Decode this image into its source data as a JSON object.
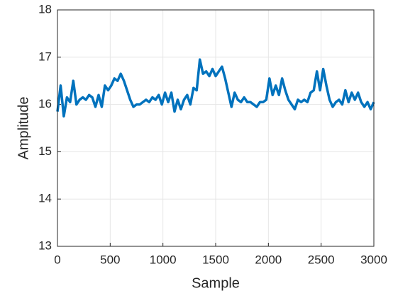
{
  "chart_data": {
    "type": "line",
    "xlabel": "Sample",
    "ylabel": "Amplitude",
    "x": [
      0,
      30,
      60,
      90,
      120,
      150,
      180,
      210,
      240,
      270,
      300,
      330,
      360,
      390,
      420,
      450,
      480,
      510,
      540,
      570,
      600,
      630,
      660,
      690,
      720,
      750,
      780,
      810,
      840,
      870,
      900,
      930,
      960,
      990,
      1020,
      1050,
      1080,
      1110,
      1140,
      1170,
      1200,
      1230,
      1260,
      1290,
      1320,
      1350,
      1380,
      1410,
      1440,
      1470,
      1500,
      1530,
      1560,
      1590,
      1620,
      1650,
      1680,
      1710,
      1740,
      1770,
      1800,
      1830,
      1860,
      1890,
      1920,
      1950,
      1980,
      2010,
      2040,
      2070,
      2100,
      2130,
      2160,
      2190,
      2220,
      2250,
      2280,
      2310,
      2340,
      2370,
      2400,
      2430,
      2460,
      2490,
      2520,
      2550,
      2580,
      2610,
      2640,
      2670,
      2700,
      2730,
      2760,
      2790,
      2820,
      2850,
      2880,
      2910,
      2940,
      2970,
      3000
    ],
    "values": [
      15.85,
      16.4,
      15.75,
      16.15,
      16.05,
      16.5,
      16.0,
      16.1,
      16.15,
      16.1,
      16.2,
      16.15,
      15.95,
      16.2,
      15.95,
      16.4,
      16.3,
      16.4,
      16.55,
      16.5,
      16.65,
      16.5,
      16.3,
      16.1,
      15.95,
      16.0,
      16.0,
      16.05,
      16.1,
      16.05,
      16.15,
      16.1,
      16.2,
      16.0,
      16.25,
      16.05,
      16.25,
      15.85,
      16.1,
      15.9,
      16.1,
      16.2,
      16.0,
      16.35,
      16.3,
      16.95,
      16.65,
      16.7,
      16.6,
      16.75,
      16.6,
      16.7,
      16.8,
      16.55,
      16.25,
      15.95,
      16.25,
      16.1,
      16.05,
      16.15,
      16.05,
      16.05,
      16.0,
      15.95,
      16.05,
      16.05,
      16.1,
      16.55,
      16.2,
      16.4,
      16.2,
      16.55,
      16.3,
      16.1,
      16.0,
      15.9,
      16.1,
      16.05,
      16.1,
      16.05,
      16.25,
      16.3,
      16.7,
      16.3,
      16.75,
      16.4,
      16.1,
      15.95,
      16.05,
      16.1,
      16.0,
      16.3,
      16.05,
      16.25,
      16.1,
      16.25,
      16.05,
      15.95,
      16.05,
      15.9,
      16.05
    ],
    "color": "#0072bd",
    "xlim": [
      0,
      3000
    ],
    "xticks": [
      0,
      500,
      1000,
      1500,
      2000,
      2500,
      3000
    ],
    "ylim": [
      13,
      18
    ],
    "yticks": [
      13,
      14,
      15,
      16,
      17,
      18
    ],
    "grid": true
  }
}
